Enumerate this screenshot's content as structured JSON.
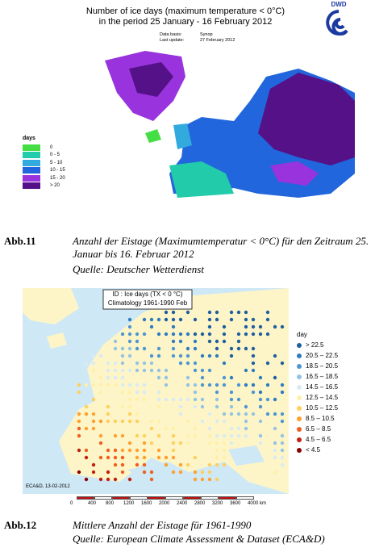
{
  "figure1": {
    "title_line1": "Number of ice days (maximum temperature < 0°C)",
    "title_line2": "in the period 25 January - 16 February 2012",
    "data_basis_label": "Data basis:",
    "data_basis": "Synop",
    "last_update_label": "Last update:",
    "last_update": "27 February 2012",
    "logo": "DWD",
    "legend_title": "days",
    "legend": [
      {
        "label": "0",
        "color": "#44dd44"
      },
      {
        "label": "0 - 5",
        "color": "#22ccaa"
      },
      {
        "label": "5 - 10",
        "color": "#33aadd"
      },
      {
        "label": "10 - 15",
        "color": "#2266dd"
      },
      {
        "label": "15 - 20",
        "color": "#9933dd"
      },
      {
        "label": "> 20",
        "color": "#551188"
      }
    ]
  },
  "caption1": {
    "label": "Abb.11",
    "text": "Anzahl der Eistage (Maximumtemperatur < 0°C) für den Zeitraum 25. Januar bis 16. Februar 2012",
    "source": "Quelle: Deutscher Wetterdienst"
  },
  "figure2": {
    "title_line1": "ID : Ice days (TX < 0 °C)",
    "title_line2": "Climatology 1961-1990 Feb",
    "legend_title": "day",
    "legend": [
      {
        "label": "> 22.5",
        "color": "#1f5f9f"
      },
      {
        "label": "20.5 – 22.5",
        "color": "#2e7cc0"
      },
      {
        "label": "18.5 – 20.5",
        "color": "#4d96d2"
      },
      {
        "label": "16.5 – 18.5",
        "color": "#93c3e3"
      },
      {
        "label": "14.5 – 16.5",
        "color": "#d8ebf2"
      },
      {
        "label": "12.5 – 14.5",
        "color": "#fff0a8"
      },
      {
        "label": "10.5 – 12.5",
        "color": "#ffcf5c"
      },
      {
        "label": "8.5 – 10.5",
        "color": "#ff9f30"
      },
      {
        "label": "6.5 – 8.5",
        "color": "#ee5f20"
      },
      {
        "label": "4.5 – 6.5",
        "color": "#c02010"
      },
      {
        "label": "< 4.5",
        "color": "#8b0000"
      }
    ],
    "credit": "ECA&D, 13-02-2012",
    "scale": [
      "0",
      "400",
      "800",
      "1200",
      "1600",
      "2000",
      "2400",
      "2800",
      "3200",
      "3600",
      "4000 km"
    ]
  },
  "caption2": {
    "label": "Abb.12",
    "text": "Mittlere Anzahl der Eistage für 1961-1990",
    "source": "Quelle: European Climate Assessment & Dataset (ECA&D)"
  }
}
